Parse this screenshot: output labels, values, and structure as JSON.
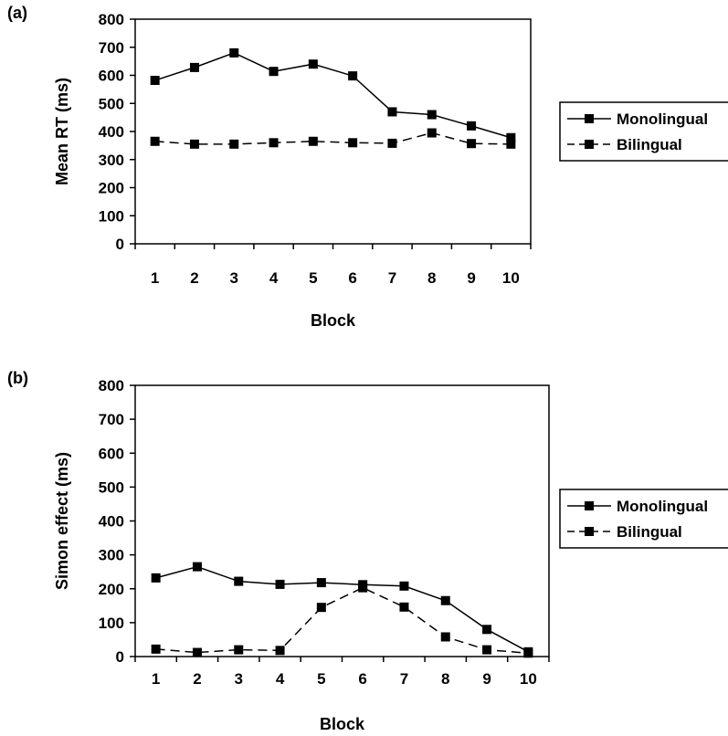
{
  "chart_data": [
    {
      "type": "line",
      "panel_label": "(a)",
      "title": "",
      "xlabel": "Block",
      "ylabel": "Mean RT (ms)",
      "ylim": [
        0,
        800
      ],
      "yticks": [
        0,
        100,
        200,
        300,
        400,
        500,
        600,
        700,
        800
      ],
      "categories": [
        "1",
        "2",
        "3",
        "4",
        "5",
        "6",
        "7",
        "8",
        "9",
        "10"
      ],
      "grid": false,
      "legend_position": "right",
      "series": [
        {
          "name": "Monolingual",
          "style": "solid",
          "color": "#000000",
          "values": [
            582,
            628,
            680,
            614,
            640,
            598,
            470,
            460,
            420,
            378
          ]
        },
        {
          "name": "Bilingual",
          "style": "dashed",
          "color": "#000000",
          "values": [
            365,
            355,
            355,
            360,
            365,
            360,
            358,
            395,
            357,
            355
          ]
        }
      ]
    },
    {
      "type": "line",
      "panel_label": "(b)",
      "title": "",
      "xlabel": "Block",
      "ylabel": "Simon effect (ms)",
      "ylim": [
        0,
        800
      ],
      "yticks": [
        0,
        100,
        200,
        300,
        400,
        500,
        600,
        700,
        800
      ],
      "categories": [
        "1",
        "2",
        "3",
        "4",
        "5",
        "6",
        "7",
        "8",
        "9",
        "10"
      ],
      "grid": false,
      "legend_position": "right",
      "series": [
        {
          "name": "Monolingual",
          "style": "solid",
          "color": "#000000",
          "values": [
            232,
            265,
            222,
            213,
            218,
            212,
            208,
            165,
            80,
            14
          ]
        },
        {
          "name": "Bilingual",
          "style": "dashed",
          "color": "#000000",
          "values": [
            22,
            12,
            20,
            18,
            145,
            203,
            146,
            58,
            20,
            10
          ]
        }
      ]
    }
  ]
}
